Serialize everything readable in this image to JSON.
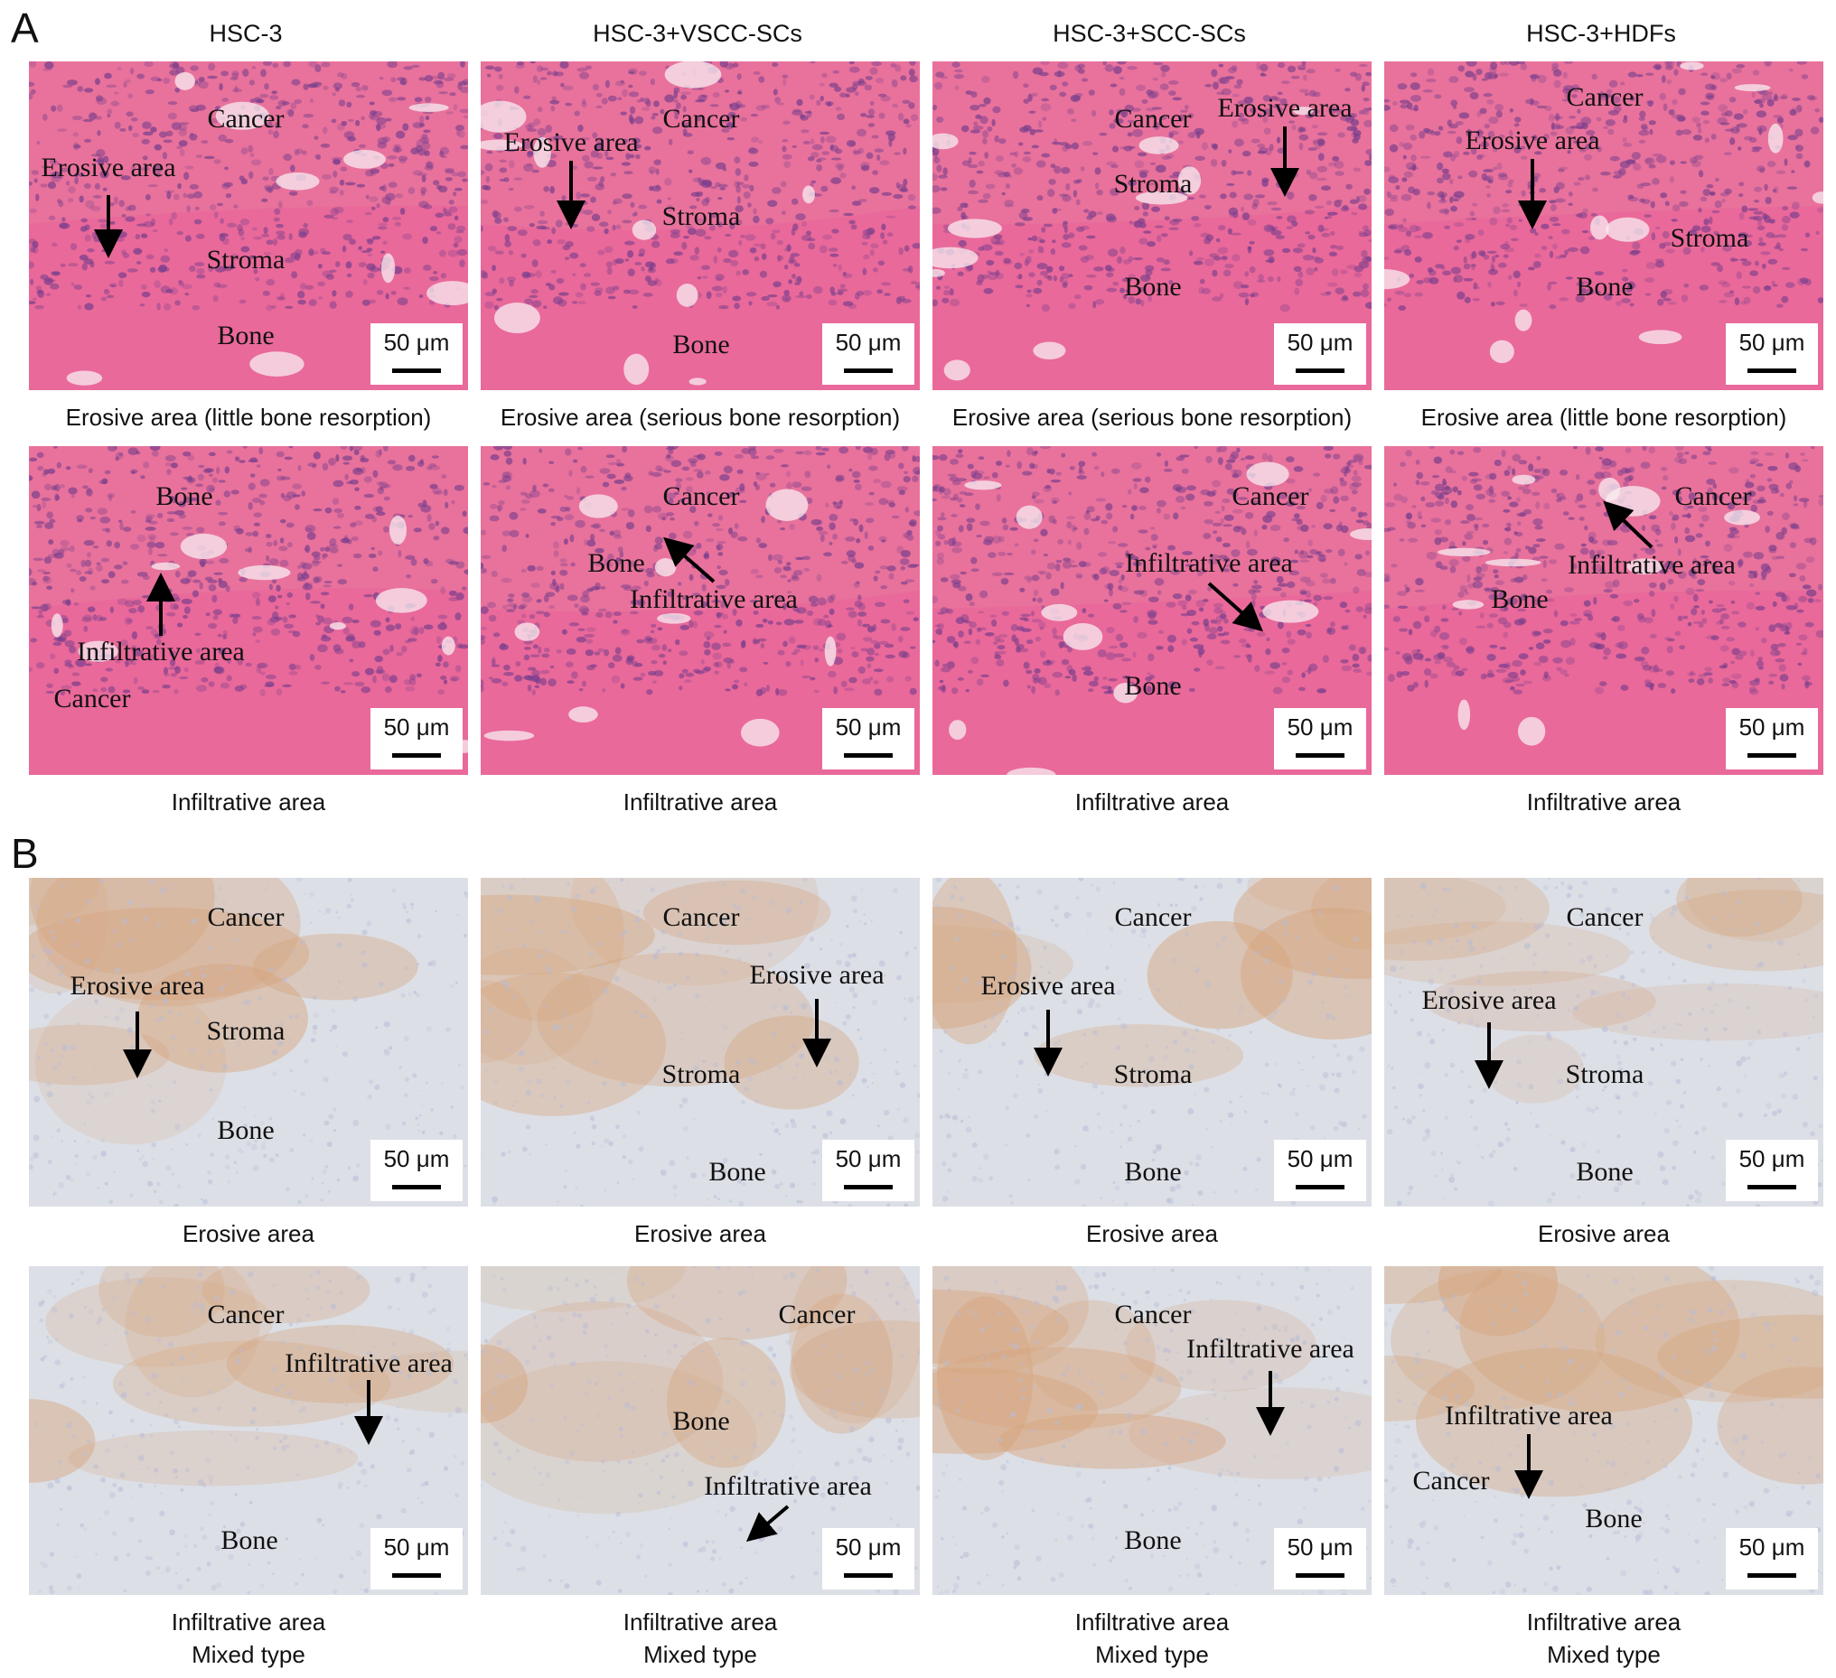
{
  "panel_letters": {
    "A": "A",
    "B": "B"
  },
  "column_headers": [
    "HSC-3",
    "HSC-3+VSCC-SCs",
    "HSC-3+SCC-SCs",
    "HSC-3+HDFs"
  ],
  "scale_label": "50 μm",
  "stains": {
    "he_base": "#e8729c",
    "he_cell": "#7b3f8c",
    "he_bone": "#e9679a",
    "ihc_base": "#dcdfe6",
    "ihc_brown": "#d6a47c",
    "ihc_blue": "#b8bcd6"
  },
  "rows": [
    {
      "panel": "A",
      "stain": "he",
      "captions": [
        "Erosive area (little bone resorption)",
        "Erosive area (serious bone resorption)",
        "Erosive area (serious bone resorption)",
        "Erosive area (little bone resorption)"
      ],
      "tiles": [
        [
          {
            "t": "Cancer"
          },
          {
            "t": "Erosive area"
          },
          {
            "t": "Stroma"
          },
          {
            "t": "Bone"
          }
        ],
        [
          {
            "t": "Cancer"
          },
          {
            "t": "Erosive area"
          },
          {
            "t": "Stroma"
          },
          {
            "t": "Bone"
          }
        ],
        [
          {
            "t": "Cancer"
          },
          {
            "t": "Erosive area"
          },
          {
            "t": "Stroma"
          },
          {
            "t": "Bone"
          }
        ],
        [
          {
            "t": "Cancer"
          },
          {
            "t": "Erosive area"
          },
          {
            "t": "Stroma"
          },
          {
            "t": "Bone"
          }
        ]
      ]
    },
    {
      "panel": "A",
      "stain": "he",
      "captions": [
        "Infiltrative area",
        "Infiltrative area",
        "Infiltrative area",
        "Infiltrative area"
      ],
      "tiles": [
        [
          {
            "t": "Bone"
          },
          {
            "t": "Infiltrative area"
          },
          {
            "t": "Cancer"
          }
        ],
        [
          {
            "t": "Cancer"
          },
          {
            "t": "Bone"
          },
          {
            "t": "Infiltrative area"
          }
        ],
        [
          {
            "t": "Cancer"
          },
          {
            "t": "Infiltrative area"
          },
          {
            "t": "Bone"
          }
        ],
        [
          {
            "t": "Cancer"
          },
          {
            "t": "Infiltrative area"
          },
          {
            "t": "Bone"
          }
        ]
      ]
    },
    {
      "panel": "B",
      "stain": "ihc",
      "captions": [
        "Erosive area",
        "Erosive area",
        "Erosive area",
        "Erosive area"
      ],
      "tiles": [
        [
          {
            "t": "Cancer"
          },
          {
            "t": "Erosive area"
          },
          {
            "t": "Stroma"
          },
          {
            "t": "Bone"
          }
        ],
        [
          {
            "t": "Cancer"
          },
          {
            "t": "Erosive area"
          },
          {
            "t": "Stroma"
          },
          {
            "t": "Bone"
          }
        ],
        [
          {
            "t": "Cancer"
          },
          {
            "t": "Erosive area"
          },
          {
            "t": "Stroma"
          },
          {
            "t": "Bone"
          }
        ],
        [
          {
            "t": "Cancer"
          },
          {
            "t": "Erosive area"
          },
          {
            "t": "Stroma"
          },
          {
            "t": "Bone"
          }
        ]
      ]
    },
    {
      "panel": "B",
      "stain": "ihc",
      "captions": [
        "Infiltrative area\nMixed type",
        "Infiltrative area\nMixed type",
        "Infiltrative area\nMixed type",
        "Infiltrative area\nMixed type"
      ],
      "tiles": [
        [
          {
            "t": "Cancer"
          },
          {
            "t": "Infiltrative area"
          },
          {
            "t": "Bone"
          }
        ],
        [
          {
            "t": "Cancer"
          },
          {
            "t": "Bone"
          },
          {
            "t": "Infiltrative area"
          }
        ],
        [
          {
            "t": "Cancer"
          },
          {
            "t": "Infiltrative area"
          },
          {
            "t": "Bone"
          }
        ],
        [
          {
            "t": "Infiltrative area"
          },
          {
            "t": "Cancer"
          },
          {
            "t": "Bone"
          }
        ]
      ]
    }
  ]
}
